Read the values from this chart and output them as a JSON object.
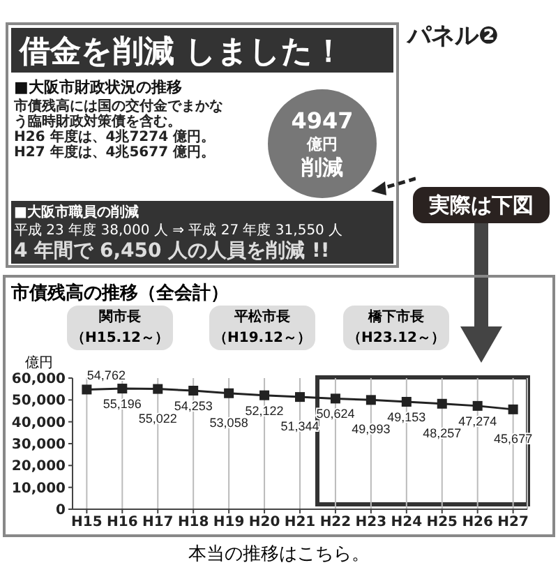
{
  "chart_data": [
    {
      "type": "other",
      "title": "借金を削減 しました！",
      "subtitle": "■大阪市財政状況の推移",
      "annotations": [
        "パネル❷",
        "市債残高には国の交付金でまかなう臨時財政対策債を含む。",
        "H26 年度は、4兆7274 億円。",
        "H27 年度は、4兆5677 億円。",
        "4947",
        "億円",
        "削減",
        "■大阪市職員の削減",
        "平成 23 年度 38,000 人 ⇒ 平成 27 年度 31,550 人",
        "4 年間で 6,450 人の人員を削減 !!",
        "実際は下図"
      ]
    },
    {
      "type": "line",
      "title": "市債残高の推移（全会計）",
      "ylabel": "億円",
      "categories": [
        "H15",
        "H16",
        "H17",
        "H18",
        "H19",
        "H20",
        "H21",
        "H22",
        "H23",
        "H24",
        "H25",
        "H26",
        "H27"
      ],
      "series": [
        {
          "color": "#222222",
          "values": [
            54762,
            55196,
            55022,
            54253,
            53058,
            52122,
            51344,
            50624,
            49993,
            49153,
            48257,
            47274,
            45677
          ],
          "value_labels": [
            "54,762",
            "55,196",
            "55,022",
            "54,253",
            "53,058",
            "52,122",
            "51,344",
            "50,624",
            "49,993",
            "49,153",
            "48,257",
            "47,274",
            "45,677"
          ]
        }
      ],
      "ylim": [
        0,
        60000
      ],
      "yticks": [
        {
          "value": 0,
          "label": "0"
        },
        {
          "value": 10000,
          "label": "10,000"
        },
        {
          "value": 20000,
          "label": "20,000"
        },
        {
          "value": 30000,
          "label": "30,000"
        },
        {
          "value": 40000,
          "label": "40,000"
        },
        {
          "value": 50000,
          "label": "50,000"
        },
        {
          "value": 60000,
          "label": "60,000"
        }
      ],
      "grid": "x",
      "marker": "square",
      "line_style": "solid",
      "annotations": [
        "関市長",
        "（H15.12～）",
        "平松市長",
        "（H19.12～）",
        "橋下市長",
        "（H23.12～）",
        "本当の推移はこちら。"
      ]
    }
  ]
}
